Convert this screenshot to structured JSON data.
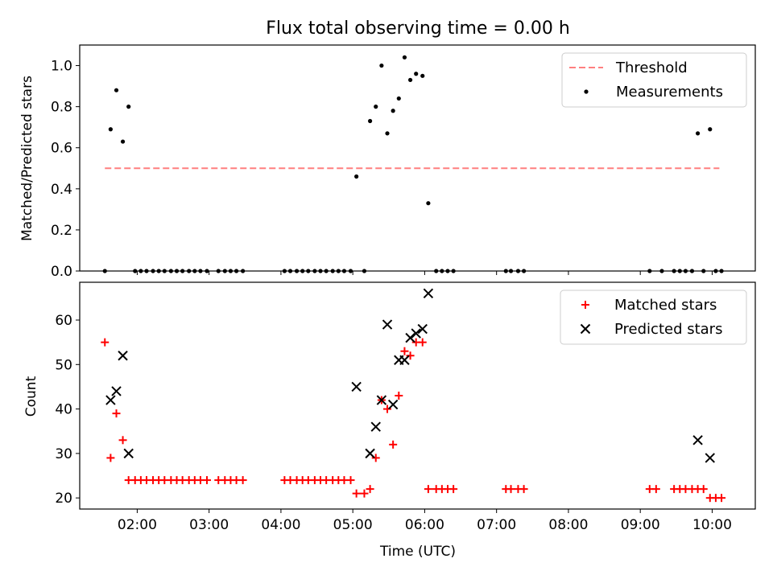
{
  "figure": {
    "title": "Flux total observing time = 0.00 h"
  },
  "chart_data": [
    {
      "type": "scatter",
      "ylabel": "Matched/Predicted stars",
      "xlim": [
        1.2,
        10.6
      ],
      "ylim": [
        0,
        1.1
      ],
      "yticks": [
        0.0,
        0.2,
        0.4,
        0.6,
        0.8,
        1.0
      ],
      "ytick_labels": [
        "0.0",
        "0.2",
        "0.4",
        "0.6",
        "0.8",
        "1.0"
      ],
      "legend_position": "top-right",
      "threshold": {
        "name": "Threshold",
        "value": 0.5,
        "x_range": [
          1.55,
          10.1
        ],
        "color": "#ff7f7f"
      },
      "series": [
        {
          "name": "Measurements",
          "marker": "dot",
          "color": "#000000",
          "points": [
            [
              1.55,
              0.0
            ],
            [
              1.63,
              0.69
            ],
            [
              1.71,
              0.88
            ],
            [
              1.8,
              0.63
            ],
            [
              1.88,
              0.8
            ],
            [
              1.97,
              0.0
            ],
            [
              2.05,
              0.0
            ],
            [
              2.13,
              0.0
            ],
            [
              2.22,
              0.0
            ],
            [
              2.3,
              0.0
            ],
            [
              2.38,
              0.0
            ],
            [
              2.47,
              0.0
            ],
            [
              2.55,
              0.0
            ],
            [
              2.63,
              0.0
            ],
            [
              2.72,
              0.0
            ],
            [
              2.8,
              0.0
            ],
            [
              2.88,
              0.0
            ],
            [
              2.97,
              0.0
            ],
            [
              3.13,
              0.0
            ],
            [
              3.22,
              0.0
            ],
            [
              3.3,
              0.0
            ],
            [
              3.38,
              0.0
            ],
            [
              3.47,
              0.0
            ],
            [
              4.05,
              0.0
            ],
            [
              4.13,
              0.0
            ],
            [
              4.22,
              0.0
            ],
            [
              4.3,
              0.0
            ],
            [
              4.38,
              0.0
            ],
            [
              4.47,
              0.0
            ],
            [
              4.55,
              0.0
            ],
            [
              4.63,
              0.0
            ],
            [
              4.72,
              0.0
            ],
            [
              4.8,
              0.0
            ],
            [
              4.88,
              0.0
            ],
            [
              4.97,
              0.0
            ],
            [
              5.05,
              0.46
            ],
            [
              5.16,
              0.0
            ],
            [
              5.24,
              0.73
            ],
            [
              5.32,
              0.8
            ],
            [
              5.4,
              1.0
            ],
            [
              5.48,
              0.67
            ],
            [
              5.56,
              0.78
            ],
            [
              5.64,
              0.84
            ],
            [
              5.72,
              1.04
            ],
            [
              5.8,
              0.93
            ],
            [
              5.88,
              0.96
            ],
            [
              5.97,
              0.95
            ],
            [
              6.05,
              0.33
            ],
            [
              6.16,
              0.0
            ],
            [
              6.24,
              0.0
            ],
            [
              6.32,
              0.0
            ],
            [
              6.4,
              0.0
            ],
            [
              7.13,
              0.0
            ],
            [
              7.2,
              0.0
            ],
            [
              7.3,
              0.0
            ],
            [
              7.38,
              0.0
            ],
            [
              9.13,
              0.0
            ],
            [
              9.3,
              0.0
            ],
            [
              9.47,
              0.0
            ],
            [
              9.55,
              0.0
            ],
            [
              9.63,
              0.0
            ],
            [
              9.72,
              0.0
            ],
            [
              9.8,
              0.67
            ],
            [
              9.88,
              0.0
            ],
            [
              9.97,
              0.69
            ],
            [
              10.05,
              0.0
            ],
            [
              10.13,
              0.0
            ]
          ]
        }
      ]
    },
    {
      "type": "scatter",
      "xlabel": "Time (UTC)",
      "ylabel": "Count",
      "xlim": [
        1.2,
        10.6
      ],
      "ylim": [
        17.5,
        68.5
      ],
      "yticks": [
        20,
        30,
        40,
        50,
        60
      ],
      "ytick_labels": [
        "20",
        "30",
        "40",
        "50",
        "60"
      ],
      "xticks": [
        2,
        3,
        4,
        5,
        6,
        7,
        8,
        9,
        10
      ],
      "xtick_labels": [
        "02:00",
        "03:00",
        "04:00",
        "05:00",
        "06:00",
        "07:00",
        "08:00",
        "09:00",
        "10:00"
      ],
      "legend_position": "top-right",
      "series": [
        {
          "name": "Matched stars",
          "marker": "plus",
          "color": "#ff0000",
          "points": [
            [
              1.55,
              55
            ],
            [
              1.63,
              29
            ],
            [
              1.71,
              39
            ],
            [
              1.8,
              33
            ],
            [
              1.88,
              24
            ],
            [
              1.97,
              24
            ],
            [
              2.05,
              24
            ],
            [
              2.13,
              24
            ],
            [
              2.22,
              24
            ],
            [
              2.3,
              24
            ],
            [
              2.38,
              24
            ],
            [
              2.47,
              24
            ],
            [
              2.55,
              24
            ],
            [
              2.63,
              24
            ],
            [
              2.72,
              24
            ],
            [
              2.8,
              24
            ],
            [
              2.88,
              24
            ],
            [
              2.97,
              24
            ],
            [
              3.13,
              24
            ],
            [
              3.22,
              24
            ],
            [
              3.3,
              24
            ],
            [
              3.38,
              24
            ],
            [
              3.47,
              24
            ],
            [
              4.05,
              24
            ],
            [
              4.13,
              24
            ],
            [
              4.22,
              24
            ],
            [
              4.3,
              24
            ],
            [
              4.38,
              24
            ],
            [
              4.47,
              24
            ],
            [
              4.55,
              24
            ],
            [
              4.63,
              24
            ],
            [
              4.72,
              24
            ],
            [
              4.8,
              24
            ],
            [
              4.88,
              24
            ],
            [
              4.97,
              24
            ],
            [
              5.05,
              21
            ],
            [
              5.16,
              21
            ],
            [
              5.24,
              22
            ],
            [
              5.32,
              29
            ],
            [
              5.4,
              42
            ],
            [
              5.48,
              40
            ],
            [
              5.56,
              32
            ],
            [
              5.64,
              43
            ],
            [
              5.72,
              53
            ],
            [
              5.8,
              52
            ],
            [
              5.88,
              55
            ],
            [
              5.97,
              55
            ],
            [
              6.05,
              22
            ],
            [
              6.16,
              22
            ],
            [
              6.24,
              22
            ],
            [
              6.32,
              22
            ],
            [
              6.4,
              22
            ],
            [
              7.13,
              22
            ],
            [
              7.2,
              22
            ],
            [
              7.3,
              22
            ],
            [
              7.38,
              22
            ],
            [
              9.13,
              22
            ],
            [
              9.22,
              22
            ],
            [
              9.47,
              22
            ],
            [
              9.55,
              22
            ],
            [
              9.63,
              22
            ],
            [
              9.72,
              22
            ],
            [
              9.8,
              22
            ],
            [
              9.88,
              22
            ],
            [
              9.97,
              20
            ],
            [
              10.05,
              20
            ],
            [
              10.13,
              20
            ]
          ]
        },
        {
          "name": "Predicted stars",
          "marker": "x",
          "color": "#000000",
          "points": [
            [
              1.63,
              42
            ],
            [
              1.71,
              44
            ],
            [
              1.8,
              52
            ],
            [
              1.88,
              30
            ],
            [
              5.05,
              45
            ],
            [
              5.24,
              30
            ],
            [
              5.32,
              36
            ],
            [
              5.4,
              42
            ],
            [
              5.48,
              59
            ],
            [
              5.56,
              41
            ],
            [
              5.64,
              51
            ],
            [
              5.72,
              51
            ],
            [
              5.8,
              56
            ],
            [
              5.88,
              57
            ],
            [
              5.97,
              58
            ],
            [
              6.05,
              66
            ],
            [
              9.8,
              33
            ],
            [
              9.97,
              29
            ]
          ]
        }
      ]
    }
  ]
}
